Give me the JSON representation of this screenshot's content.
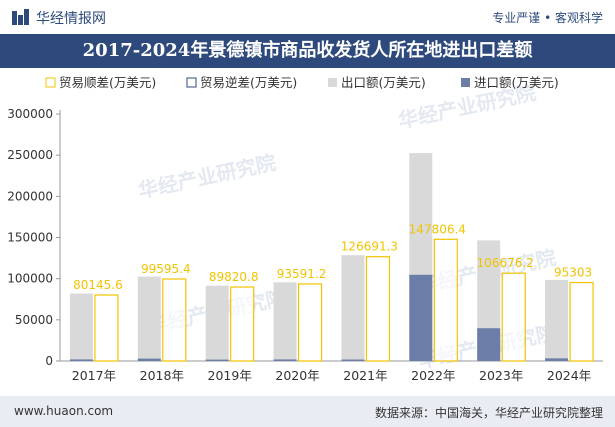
{
  "header": {
    "brand": "华经情报网",
    "tagline": "专业严谨 • 客观科学"
  },
  "title": "2017-2024年景德镇市商品收发货人所在地进出口差额",
  "footer": {
    "website": "www.huaon.com",
    "source": "数据来源：中国海关，华经产业研究院整理"
  },
  "watermark": "华经产业研究院",
  "colors": {
    "header_bg": "#2e4a7d",
    "surplus": "#f2c300",
    "deficit": "#2e4a7d",
    "export": "#d9d9d9",
    "import": "#6b7ea8"
  },
  "chart_data": {
    "type": "bar",
    "categories": [
      "2017年",
      "2018年",
      "2019年",
      "2020年",
      "2021年",
      "2022年",
      "2023年",
      "2024年"
    ],
    "series": [
      {
        "name": "贸易顺差(万美元)",
        "values": [
          80145.6,
          99595.4,
          89820.8,
          93591.2,
          126691.3,
          147806.4,
          106676.2,
          95303
        ]
      },
      {
        "name": "贸易逆差(万美元)",
        "values": [
          0,
          0,
          0,
          0,
          0,
          0,
          0,
          0
        ]
      },
      {
        "name": "出口额(万美元)",
        "values": [
          82000,
          102500,
          91500,
          95500,
          128500,
          252500,
          146500,
          98500
        ]
      },
      {
        "name": "进口额(万美元)",
        "values": [
          1900,
          2900,
          1700,
          1900,
          1800,
          104700,
          39800,
          3200
        ]
      }
    ],
    "data_labels": [
      "80145.6",
      "99595.4",
      "89820.8",
      "93591.2",
      "126691.3",
      "147806.4",
      "106676.2",
      "95303"
    ],
    "y_ticks": [
      "0",
      "50000",
      "100000",
      "150000",
      "200000",
      "250000",
      "300000"
    ],
    "ylim": [
      0,
      300000
    ],
    "legend_position": "top",
    "grid": false
  }
}
